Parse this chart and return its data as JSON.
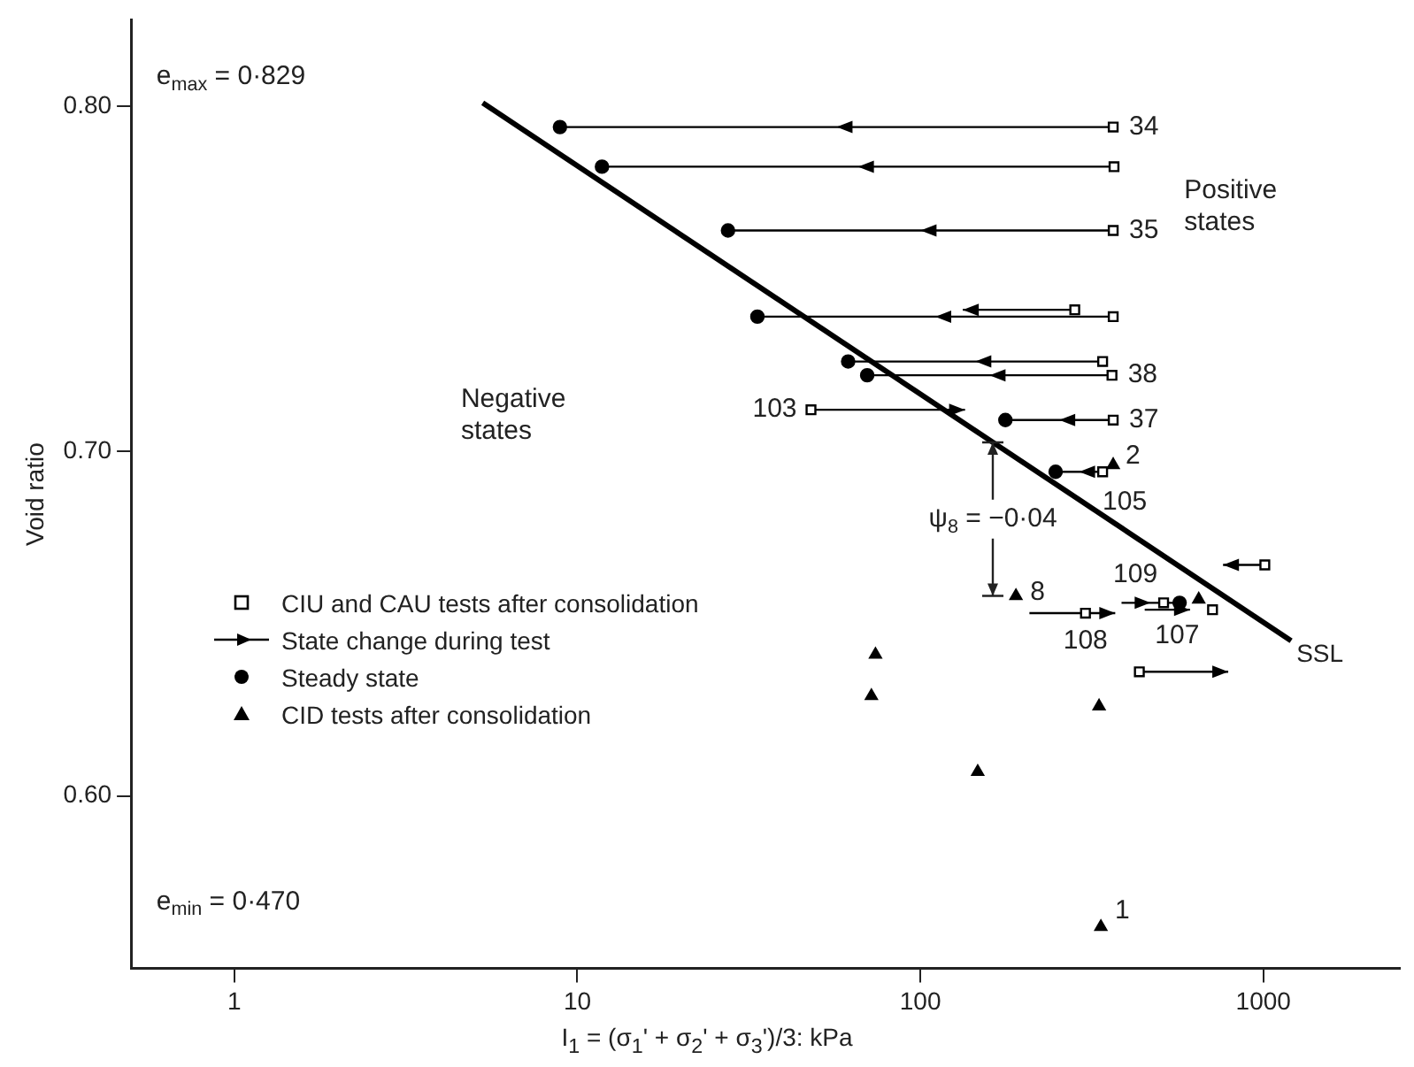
{
  "chart_data": {
    "type": "scatter",
    "xlabel": "I$_{1}$ = (σ$_{1}$' + σ$_{2}$' + σ$_{3}$')/3: kPa",
    "ylabel": "Void ratio",
    "log": "x",
    "xlim": [
      0.5,
      2500
    ],
    "xticks": [
      1,
      10,
      100,
      1000
    ],
    "ylim": [
      0.55,
      0.825
    ],
    "yticks": [
      {
        "value": 0.6,
        "label": "0.60"
      },
      {
        "value": 0.7,
        "label": "0.70"
      },
      {
        "value": 0.8,
        "label": "0.80"
      }
    ],
    "grid": false,
    "legend": "left",
    "series": [
      {
        "name": "CIU and CAU tests after consolidation",
        "type": "scatter",
        "marker": "square",
        "color": "#000000",
        "x": [
          365,
          367,
          365,
          282,
          365,
          340,
          362,
          48,
          365,
          340,
          1010,
          303,
          512,
          711,
          435
        ],
        "values": [
          0.794,
          0.7825,
          0.764,
          0.741,
          0.739,
          0.726,
          0.722,
          0.712,
          0.709,
          0.694,
          0.667,
          0.653,
          0.656,
          0.654,
          0.636
        ]
      },
      {
        "name": "State change during test",
        "type": "line",
        "marker": "none",
        "color": "#000000",
        "x": [
          365,
          8.9,
          null,
          367,
          11.8,
          null,
          365,
          27.5,
          null,
          282,
          133,
          null,
          365,
          33.5,
          null,
          340,
          61.6,
          null,
          362,
          70,
          null,
          48,
          135,
          null,
          365,
          177,
          null,
          340,
          248,
          null,
          1010,
          763,
          null,
          208,
          370,
          null,
          386,
          570,
          null,
          451,
          611,
          null,
          435,
          790
        ],
        "values": [
          0.794,
          0.794,
          null,
          0.7825,
          0.7825,
          null,
          0.764,
          0.764,
          null,
          0.741,
          0.741,
          null,
          0.739,
          0.739,
          null,
          0.726,
          0.726,
          null,
          0.722,
          0.722,
          null,
          0.712,
          0.712,
          null,
          0.709,
          0.709,
          null,
          0.694,
          0.694,
          null,
          0.667,
          0.667,
          null,
          0.653,
          0.653,
          null,
          0.656,
          0.656,
          null,
          0.654,
          0.654,
          null,
          0.636,
          0.636
        ]
      },
      {
        "name": "Steady state",
        "type": "scatter",
        "marker": "circle",
        "color": "#000000",
        "x": [
          8.9,
          11.8,
          27.5,
          33.5,
          61.6,
          70,
          177,
          248,
          570
        ],
        "values": [
          0.794,
          0.7825,
          0.764,
          0.739,
          0.726,
          0.722,
          0.709,
          0.694,
          0.656
        ]
      },
      {
        "name": "CID tests after consolidation",
        "type": "scatter",
        "marker": "triangle",
        "color": "#000000",
        "x": [
          365,
          190,
          648,
          74,
          72,
          332,
          147,
          336
        ],
        "values": [
          0.696,
          0.658,
          0.657,
          0.641,
          0.629,
          0.626,
          0.607,
          0.562
        ]
      },
      {
        "name": "SSL",
        "type": "line",
        "marker": "none",
        "color": "#000000",
        "x": [
          5.3,
          1205
        ],
        "values": [
          0.801,
          0.645
        ]
      }
    ],
    "annotations": [
      "e$_{max}$ = 0·829",
      "e$_{min}$ = 0·470",
      "Negative states",
      "Positive states",
      {
        "text": "34",
        "x": 365,
        "y": 0.794
      },
      {
        "text": "35",
        "x": 365,
        "y": 0.764
      },
      {
        "text": "38",
        "x": 362,
        "y": 0.722
      },
      {
        "text": "103",
        "x": 48,
        "y": 0.712
      },
      {
        "text": "37",
        "x": 365,
        "y": 0.709
      },
      {
        "text": "2",
        "x": 365,
        "y": 0.696
      },
      {
        "text": "105",
        "x": 340,
        "y": 0.694
      },
      {
        "text": "109",
        "x": 512,
        "y": 0.656
      },
      {
        "text": "108",
        "x": 303,
        "y": 0.653
      },
      {
        "text": "107",
        "x": 711,
        "y": 0.654
      },
      {
        "text": "8",
        "x": 190,
        "y": 0.658
      },
      {
        "text": "1",
        "x": 336,
        "y": 0.562
      },
      {
        "text": "ψ$_{8}$ = −0·04",
        "x": 190,
        "y": 0.658
      }
    ]
  }
}
